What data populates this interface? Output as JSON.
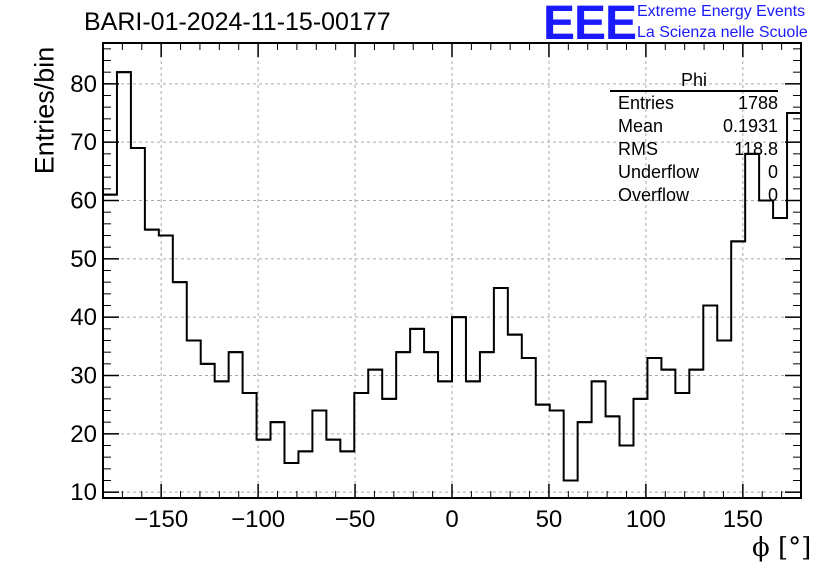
{
  "header": {
    "title": "BARI-01-2024-11-15-00177",
    "logo_text": "EEE",
    "logo_line1": "Extreme Energy Events",
    "logo_line2": "La Scienza nelle Scuole"
  },
  "stats": {
    "title": "Phi",
    "rows": [
      {
        "label": "Entries",
        "value": "1788"
      },
      {
        "label": "Mean",
        "value": "0.1931"
      },
      {
        "label": "RMS",
        "value": "118.8"
      },
      {
        "label": "Underflow",
        "value": "0"
      },
      {
        "label": "Overflow",
        "value": "0"
      }
    ]
  },
  "chart_data": {
    "type": "histogram",
    "title": "BARI-01-2024-11-15-00177",
    "xlabel": "ϕ [°]",
    "ylabel": "Entries/bin",
    "xlim": [
      -180,
      180
    ],
    "ylim": [
      9,
      87
    ],
    "grid": true,
    "bin_width": 7.2,
    "x_ticks": [
      -150,
      -100,
      -50,
      0,
      50,
      100,
      150
    ],
    "y_ticks": [
      10,
      20,
      30,
      40,
      50,
      60,
      70,
      80
    ],
    "x_tick_labels": [
      "−150",
      "−100",
      "−50",
      "0",
      "50",
      "100",
      "150"
    ],
    "y_tick_labels": [
      "10",
      "20",
      "30",
      "40",
      "50",
      "60",
      "70",
      "80"
    ],
    "values": [
      61,
      82,
      69,
      55,
      54,
      46,
      36,
      32,
      29,
      34,
      27,
      19,
      22,
      15,
      17,
      24,
      19,
      17,
      27,
      31,
      26,
      34,
      38,
      34,
      29,
      40,
      29,
      34,
      45,
      37,
      33,
      25,
      24,
      12,
      22,
      29,
      23,
      18,
      26,
      33,
      31,
      27,
      31,
      42,
      36,
      53,
      68,
      60,
      57,
      75
    ],
    "line_color": "#000000"
  }
}
